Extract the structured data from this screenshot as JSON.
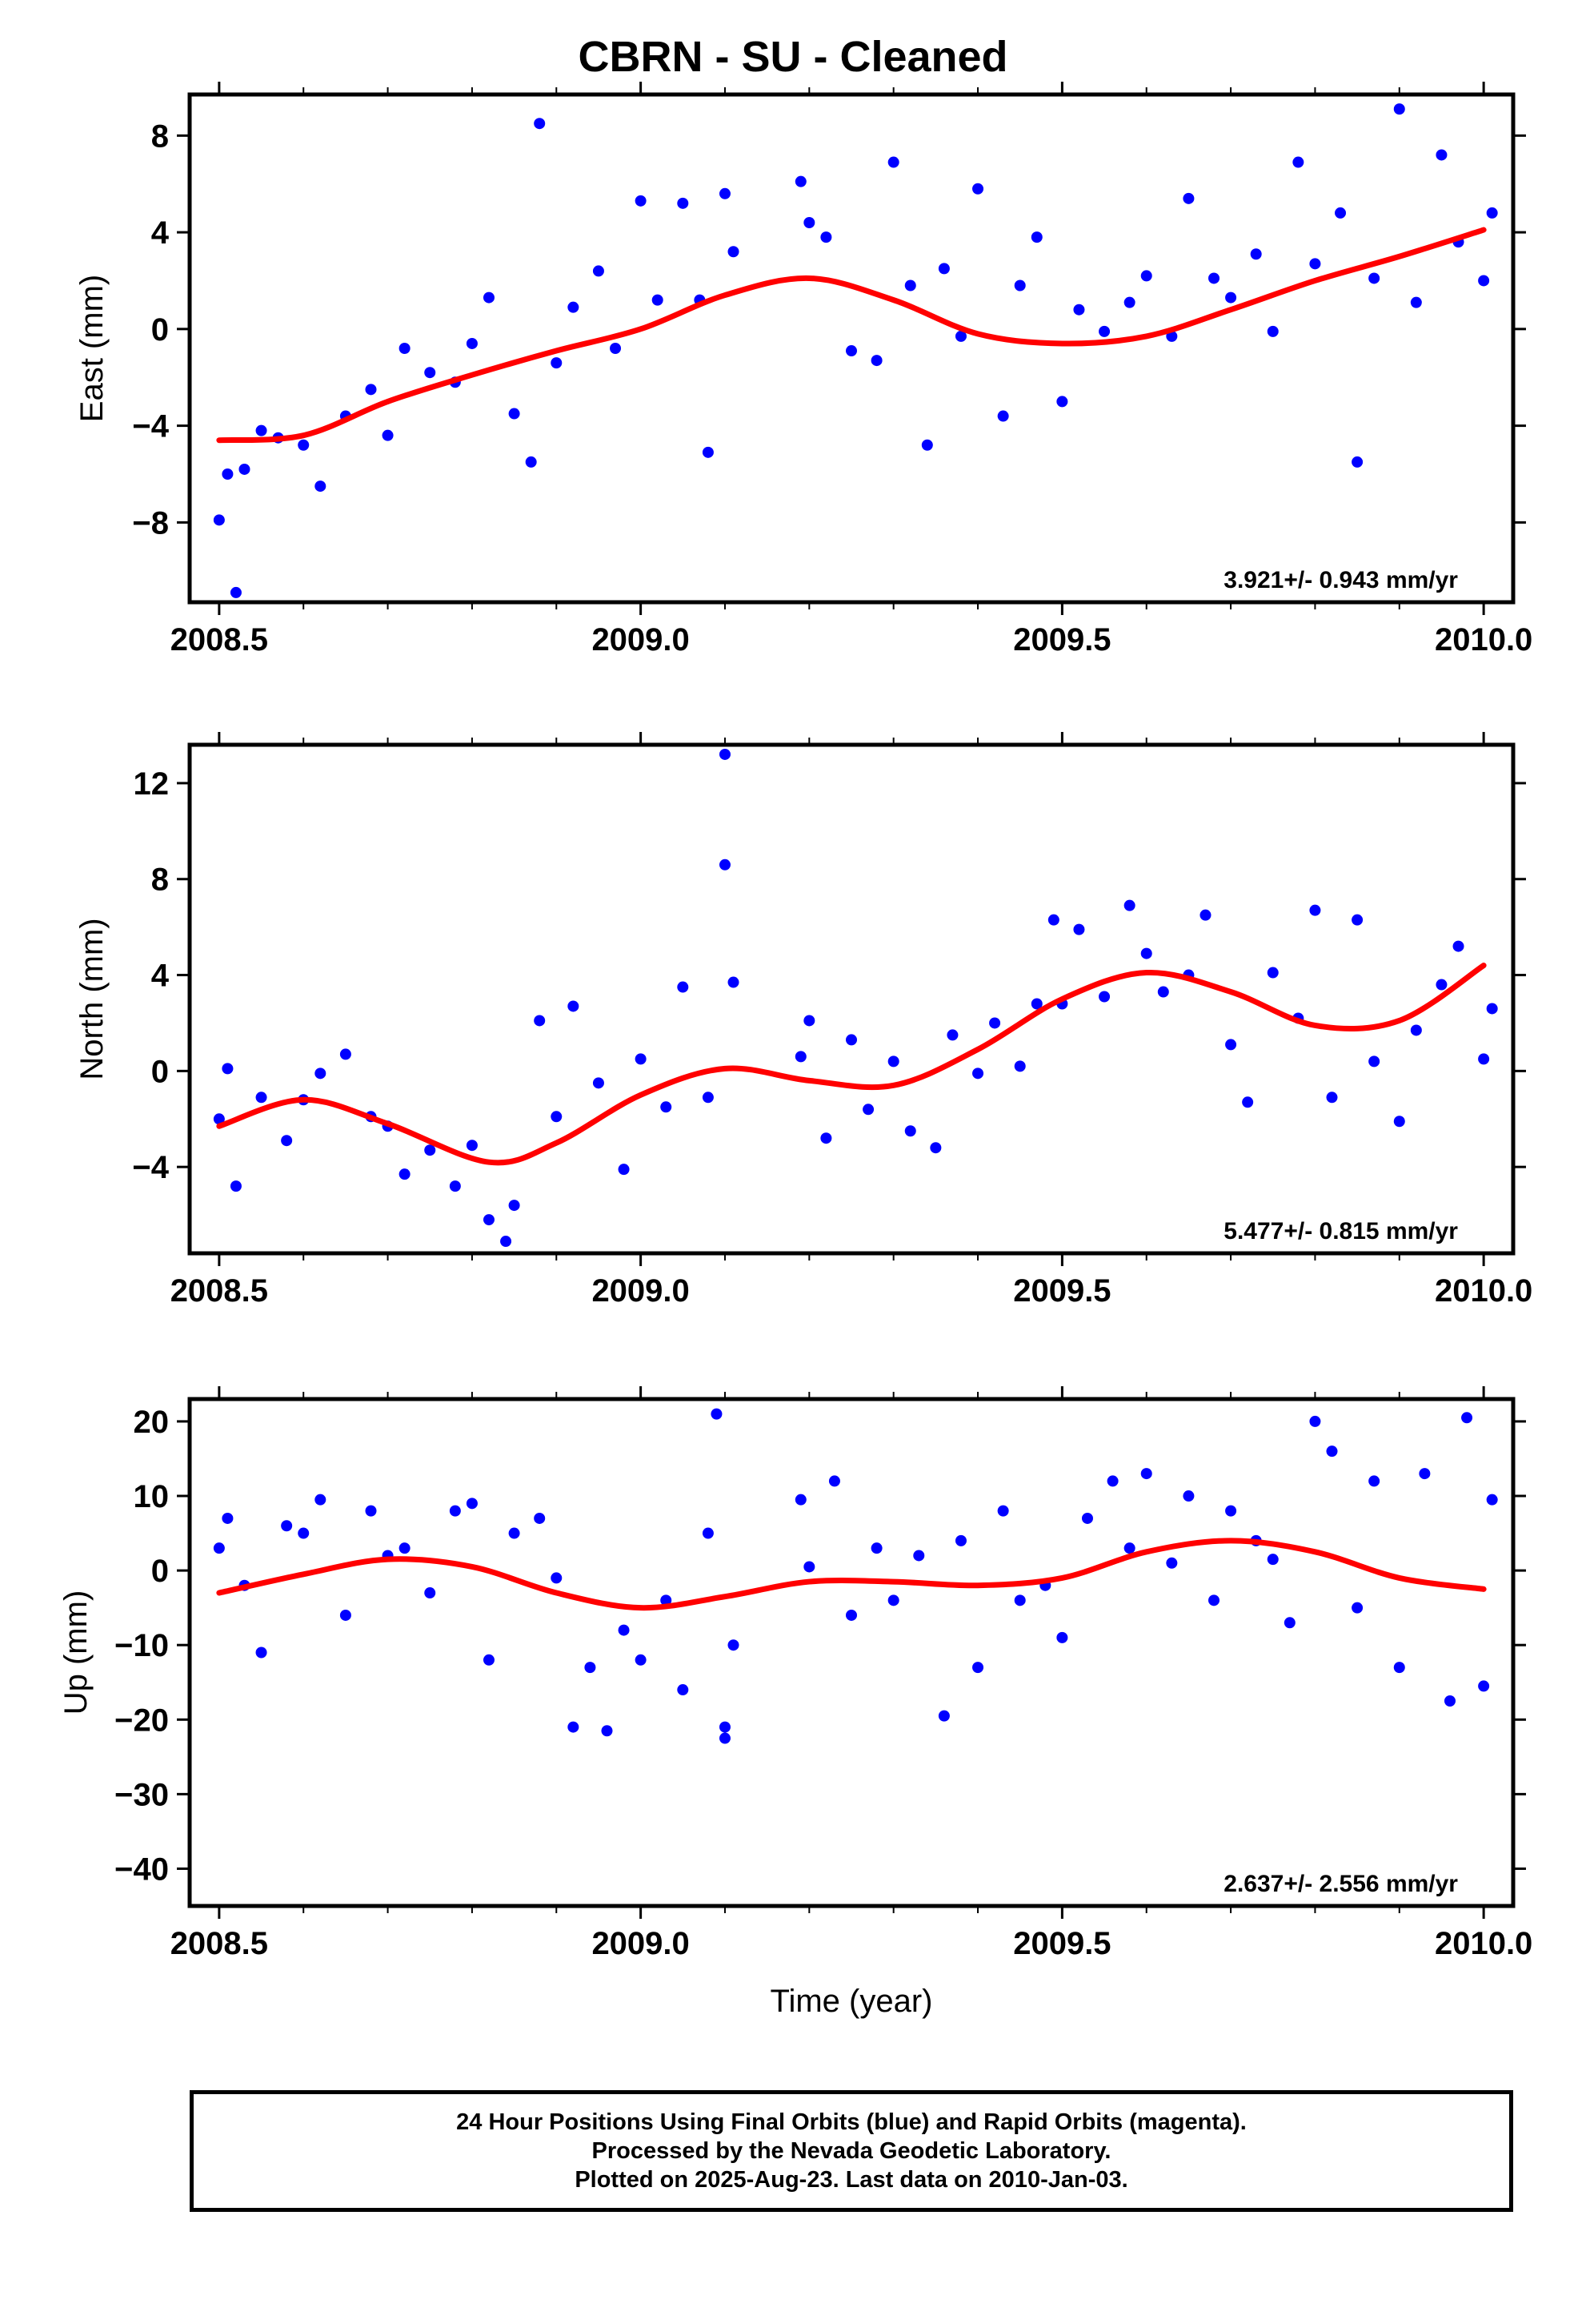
{
  "title": "CBRN  - SU - Cleaned",
  "footer": {
    "line1": "24 Hour Positions Using Final Orbits (blue) and Rapid Orbits (magenta).",
    "line2": "Processed by the Nevada Geodetic Laboratory.",
    "line3": "Plotted on 2025-Aug-23. Last data on 2010-Jan-03."
  },
  "colors": {
    "points": "#0000ff",
    "fit": "#ff0000",
    "frame": "#000000"
  },
  "chart_data": [
    {
      "type": "scatter",
      "title": "",
      "xlabel": "",
      "ylabel": "East (mm)",
      "xlim": [
        2008.465,
        2010.035
      ],
      "ylim": [
        -11.3,
        9.7
      ],
      "xticks": [
        2008.5,
        2009.0,
        2009.5,
        2010.0
      ],
      "xtick_labels": [
        "2008.5",
        "2009.0",
        "2009.5",
        "2010.0"
      ],
      "yticks": [
        -8,
        -4,
        0,
        4,
        8
      ],
      "grid": false,
      "rate_annotation": "3.921+/- 0.943 mm/yr",
      "series": [
        {
          "kind": "points",
          "x": [
            2008.5,
            2008.51,
            2008.52,
            2008.53,
            2008.55,
            2008.57,
            2008.6,
            2008.62,
            2008.65,
            2008.68,
            2008.7,
            2008.72,
            2008.75,
            2008.78,
            2008.8,
            2008.82,
            2008.85,
            2008.87,
            2008.88,
            2008.9,
            2008.92,
            2008.95,
            2008.97,
            2009.0,
            2009.02,
            2009.05,
            2009.07,
            2009.08,
            2009.1,
            2009.11,
            2009.19,
            2009.2,
            2009.22,
            2009.25,
            2009.28,
            2009.3,
            2009.32,
            2009.34,
            2009.36,
            2009.38,
            2009.4,
            2009.43,
            2009.45,
            2009.47,
            2009.5,
            2009.52,
            2009.55,
            2009.58,
            2009.6,
            2009.63,
            2009.65,
            2009.68,
            2009.7,
            2009.73,
            2009.75,
            2009.78,
            2009.8,
            2009.83,
            2009.85,
            2009.87,
            2009.9,
            2009.92,
            2009.95,
            2009.97,
            2010.0,
            2010.01
          ],
          "y": [
            -7.9,
            -6.0,
            -10.9,
            -5.8,
            -4.2,
            -4.5,
            -4.8,
            -6.5,
            -3.6,
            -2.5,
            -4.4,
            -0.8,
            -1.8,
            -2.2,
            -0.6,
            1.3,
            -3.5,
            -5.5,
            8.5,
            -1.4,
            0.9,
            2.4,
            -0.8,
            5.3,
            1.2,
            5.2,
            1.2,
            -5.1,
            5.6,
            3.2,
            6.1,
            4.4,
            3.8,
            -0.9,
            -1.3,
            6.9,
            1.8,
            -4.8,
            2.5,
            -0.3,
            5.8,
            -3.6,
            1.8,
            3.8,
            -3.0,
            0.8,
            -0.1,
            1.1,
            2.2,
            -0.3,
            5.4,
            2.1,
            1.3,
            3.1,
            -0.1,
            6.9,
            2.7,
            4.8,
            -5.5,
            2.1,
            9.1,
            1.1,
            7.2,
            3.6,
            2.0,
            4.8
          ]
        },
        {
          "kind": "fit",
          "x": [
            2008.5,
            2008.6,
            2008.7,
            2008.8,
            2008.9,
            2009.0,
            2009.1,
            2009.2,
            2009.3,
            2009.4,
            2009.5,
            2009.6,
            2009.7,
            2009.8,
            2009.9,
            2010.0
          ],
          "y": [
            -4.6,
            -4.4,
            -3.0,
            -1.9,
            -0.9,
            0.0,
            1.4,
            2.1,
            1.2,
            -0.2,
            -0.6,
            -0.3,
            0.8,
            2.0,
            3.0,
            4.1
          ]
        }
      ]
    },
    {
      "type": "scatter",
      "title": "",
      "xlabel": "",
      "ylabel": "North (mm)",
      "xlim": [
        2008.465,
        2010.035
      ],
      "ylim": [
        -7.6,
        13.6
      ],
      "xticks": [
        2008.5,
        2009.0,
        2009.5,
        2010.0
      ],
      "xtick_labels": [
        "2008.5",
        "2009.0",
        "2009.5",
        "2010.0"
      ],
      "yticks": [
        -4,
        0,
        4,
        8,
        12
      ],
      "grid": false,
      "rate_annotation": "5.477+/- 0.815 mm/yr",
      "series": [
        {
          "kind": "points",
          "x": [
            2008.5,
            2008.51,
            2008.52,
            2008.55,
            2008.58,
            2008.6,
            2008.62,
            2008.65,
            2008.68,
            2008.7,
            2008.72,
            2008.75,
            2008.78,
            2008.8,
            2008.82,
            2008.84,
            2008.85,
            2008.88,
            2008.9,
            2008.92,
            2008.95,
            2008.98,
            2009.0,
            2009.03,
            2009.05,
            2009.08,
            2009.1,
            2009.1,
            2009.11,
            2009.19,
            2009.2,
            2009.22,
            2009.25,
            2009.27,
            2009.3,
            2009.32,
            2009.35,
            2009.37,
            2009.4,
            2009.42,
            2009.45,
            2009.47,
            2009.49,
            2009.5,
            2009.52,
            2009.55,
            2009.58,
            2009.6,
            2009.62,
            2009.65,
            2009.67,
            2009.7,
            2009.72,
            2009.75,
            2009.78,
            2009.8,
            2009.82,
            2009.85,
            2009.87,
            2009.9,
            2009.92,
            2009.95,
            2009.97,
            2010.0,
            2010.01
          ],
          "y": [
            -2.0,
            0.1,
            -4.8,
            -1.1,
            -2.9,
            -1.2,
            -0.1,
            0.7,
            -1.9,
            -2.3,
            -4.3,
            -3.3,
            -4.8,
            -3.1,
            -6.2,
            -7.1,
            -5.6,
            2.1,
            -1.9,
            2.7,
            -0.5,
            -4.1,
            0.5,
            -1.5,
            3.5,
            -1.1,
            13.2,
            8.6,
            3.7,
            0.6,
            2.1,
            -2.8,
            1.3,
            -1.6,
            0.4,
            -2.5,
            -3.2,
            1.5,
            -0.1,
            2.0,
            0.2,
            2.8,
            6.3,
            2.8,
            5.9,
            3.1,
            6.9,
            4.9,
            3.3,
            4.0,
            6.5,
            1.1,
            -1.3,
            4.1,
            2.2,
            6.7,
            -1.1,
            6.3,
            0.4,
            -2.1,
            1.7,
            3.6,
            5.2,
            0.5,
            2.6
          ]
        },
        {
          "kind": "fit",
          "x": [
            2008.5,
            2008.6,
            2008.7,
            2008.82,
            2008.9,
            2009.0,
            2009.1,
            2009.2,
            2009.3,
            2009.4,
            2009.5,
            2009.6,
            2009.7,
            2009.8,
            2009.9,
            2010.0
          ],
          "y": [
            -2.3,
            -1.2,
            -2.2,
            -3.8,
            -3.0,
            -1.0,
            0.1,
            -0.4,
            -0.6,
            0.9,
            3.0,
            4.1,
            3.3,
            1.9,
            2.1,
            4.4
          ]
        }
      ]
    },
    {
      "type": "scatter",
      "title": "",
      "xlabel": "Time (year)",
      "ylabel": "Up (mm)",
      "xlim": [
        2008.465,
        2010.035
      ],
      "ylim": [
        -45,
        23
      ],
      "xticks": [
        2008.5,
        2009.0,
        2009.5,
        2010.0
      ],
      "xtick_labels": [
        "2008.5",
        "2009.0",
        "2009.5",
        "2010.0"
      ],
      "yticks": [
        -40,
        -30,
        -20,
        -10,
        0,
        10,
        20
      ],
      "grid": false,
      "rate_annotation": "2.637+/- 2.556 mm/yr",
      "series": [
        {
          "kind": "points",
          "x": [
            2008.5,
            2008.51,
            2008.53,
            2008.55,
            2008.58,
            2008.6,
            2008.62,
            2008.65,
            2008.68,
            2008.7,
            2008.72,
            2008.75,
            2008.78,
            2008.8,
            2008.82,
            2008.85,
            2008.88,
            2008.9,
            2008.92,
            2008.94,
            2008.96,
            2008.98,
            2009.0,
            2009.03,
            2009.05,
            2009.08,
            2009.09,
            2009.1,
            2009.1,
            2009.11,
            2009.19,
            2009.2,
            2009.23,
            2009.25,
            2009.28,
            2009.3,
            2009.33,
            2009.36,
            2009.38,
            2009.4,
            2009.43,
            2009.45,
            2009.48,
            2009.5,
            2009.53,
            2009.56,
            2009.58,
            2009.6,
            2009.63,
            2009.65,
            2009.68,
            2009.7,
            2009.73,
            2009.75,
            2009.77,
            2009.8,
            2009.82,
            2009.85,
            2009.87,
            2009.9,
            2009.93,
            2009.96,
            2009.98,
            2010.0,
            2010.01
          ],
          "y": [
            3.0,
            7.0,
            -2.0,
            -11.0,
            6.0,
            5.0,
            9.5,
            -6.0,
            8.0,
            2.0,
            3.0,
            -3.0,
            8.0,
            9.0,
            -12.0,
            5.0,
            7.0,
            -1.0,
            -21.0,
            -13.0,
            -21.5,
            -8.0,
            -12.0,
            -4.0,
            -16.0,
            5.0,
            21.0,
            -22.5,
            -21.0,
            -10.0,
            9.5,
            0.5,
            12.0,
            -6.0,
            3.0,
            -4.0,
            2.0,
            -19.5,
            4.0,
            -13.0,
            8.0,
            -4.0,
            -2.0,
            -9.0,
            7.0,
            12.0,
            3.0,
            13.0,
            1.0,
            10.0,
            -4.0,
            8.0,
            4.0,
            1.5,
            -7.0,
            20.0,
            16.0,
            -5.0,
            12.0,
            -13.0,
            13.0,
            -17.5,
            20.5,
            -15.5,
            9.5
          ]
        },
        {
          "kind": "fit",
          "x": [
            2008.5,
            2008.6,
            2008.7,
            2008.8,
            2008.9,
            2009.0,
            2009.1,
            2009.2,
            2009.3,
            2009.4,
            2009.5,
            2009.6,
            2009.7,
            2009.8,
            2009.9,
            2010.0
          ],
          "y": [
            -3.0,
            -0.5,
            1.5,
            0.5,
            -3.0,
            -5.0,
            -3.5,
            -1.5,
            -1.5,
            -2.0,
            -1.0,
            2.5,
            4.0,
            2.5,
            -1.0,
            -2.5
          ]
        }
      ]
    }
  ]
}
